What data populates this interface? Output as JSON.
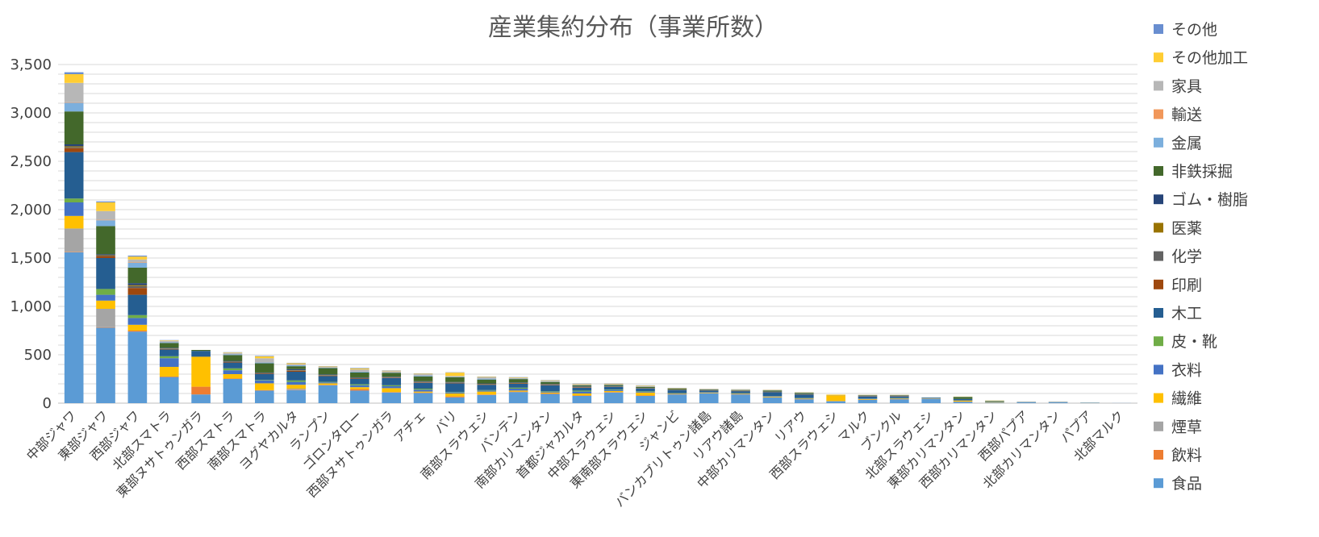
{
  "chart_data": {
    "type": "bar",
    "stacked": true,
    "title": "産業集約分布（事業所数）",
    "xlabel": "",
    "ylabel": "",
    "ylim": [
      0,
      3500
    ],
    "yticks": [
      0,
      500,
      1000,
      1500,
      2000,
      2500,
      3000,
      3500
    ],
    "ytick_labels": [
      "0",
      "500",
      "1,000",
      "1,500",
      "2,000",
      "2,500",
      "3,000",
      "3,500"
    ],
    "grid": true,
    "legend_position": "right",
    "categories": [
      "中部ジャワ",
      "東部ジャワ",
      "西部ジャワ",
      "北部スマトラ",
      "東部ヌサトゥンガラ",
      "西部スマトラ",
      "南部スマトラ",
      "ヨグヤカルタ",
      "ランプン",
      "ゴロンタロー",
      "西部ヌサトゥンガラ",
      "アチェ",
      "バリ",
      "南部スラウェシ",
      "バンテン",
      "南部カリマンタン",
      "首都ジャカルタ",
      "中部スラウェシ",
      "東南部スラウェシ",
      "ジャンビ",
      "バンカブリトゥン諸島",
      "リアウ諸島",
      "中部カリマンタン",
      "リアウ",
      "西部スラウェシ",
      "マルク",
      "ブンクル",
      "北部スラウェシ",
      "東部カリマンタン",
      "西部カリマンタン",
      "西部パプア",
      "北部カリマンタン",
      "パプア",
      "北部マルク"
    ],
    "series": [
      {
        "name": "食品",
        "color": "#5b9bd5",
        "values": [
          1560,
          780,
          740,
          270,
          90,
          250,
          130,
          135,
          185,
          130,
          110,
          105,
          60,
          85,
          115,
          95,
          75,
          110,
          75,
          90,
          100,
          90,
          60,
          40,
          20,
          35,
          40,
          45,
          15,
          6,
          8,
          8,
          2,
          1
        ]
      },
      {
        "name": "飲料",
        "color": "#ed7d31",
        "values": [
          5,
          5,
          10,
          5,
          80,
          5,
          5,
          5,
          5,
          15,
          5,
          5,
          10,
          5,
          5,
          5,
          5,
          5,
          5,
          2,
          2,
          2,
          2,
          2,
          2,
          2,
          2,
          2,
          2,
          1,
          1,
          1,
          0,
          0
        ]
      },
      {
        "name": "煙草",
        "color": "#a5a5a5",
        "values": [
          240,
          190,
          0,
          0,
          0,
          0,
          0,
          10,
          0,
          0,
          0,
          0,
          0,
          0,
          0,
          0,
          0,
          0,
          0,
          0,
          0,
          0,
          0,
          0,
          0,
          0,
          0,
          0,
          0,
          0,
          0,
          0,
          0,
          0
        ]
      },
      {
        "name": "繊維",
        "color": "#ffc000",
        "values": [
          130,
          85,
          60,
          100,
          310,
          45,
          70,
          40,
          15,
          20,
          40,
          10,
          30,
          30,
          10,
          10,
          20,
          10,
          30,
          5,
          5,
          5,
          5,
          5,
          60,
          5,
          5,
          2,
          10,
          5,
          1,
          1,
          0,
          0
        ]
      },
      {
        "name": "衣料",
        "color": "#4472c4",
        "values": [
          140,
          60,
          70,
          90,
          0,
          40,
          30,
          30,
          10,
          20,
          20,
          20,
          10,
          10,
          20,
          10,
          20,
          10,
          10,
          5,
          5,
          5,
          5,
          5,
          2,
          5,
          5,
          2,
          2,
          2,
          1,
          1,
          0,
          0
        ]
      },
      {
        "name": "皮・靴",
        "color": "#70ad47",
        "values": [
          40,
          60,
          30,
          20,
          0,
          20,
          5,
          15,
          5,
          10,
          10,
          10,
          5,
          5,
          10,
          5,
          10,
          5,
          5,
          2,
          2,
          2,
          2,
          2,
          0,
          2,
          2,
          0,
          0,
          0,
          0,
          0,
          0,
          0
        ]
      },
      {
        "name": "木工",
        "color": "#255e91",
        "values": [
          480,
          320,
          210,
          70,
          60,
          60,
          60,
          90,
          60,
          55,
          75,
          60,
          90,
          55,
          40,
          60,
          30,
          30,
          25,
          30,
          15,
          20,
          40,
          35,
          0,
          20,
          15,
          5,
          15,
          5,
          2,
          2,
          2,
          0
        ]
      },
      {
        "name": "印刷",
        "color": "#9e480e",
        "values": [
          40,
          20,
          70,
          5,
          0,
          5,
          5,
          10,
          5,
          5,
          5,
          5,
          5,
          5,
          5,
          5,
          5,
          2,
          2,
          2,
          2,
          2,
          2,
          2,
          0,
          2,
          2,
          0,
          0,
          0,
          0,
          0,
          0,
          0
        ]
      },
      {
        "name": "化学",
        "color": "#636363",
        "values": [
          10,
          5,
          20,
          5,
          0,
          5,
          5,
          5,
          5,
          5,
          2,
          5,
          2,
          2,
          2,
          2,
          2,
          2,
          2,
          2,
          2,
          2,
          2,
          2,
          0,
          1,
          1,
          0,
          0,
          0,
          0,
          0,
          0,
          0
        ]
      },
      {
        "name": "医薬",
        "color": "#997300",
        "values": [
          10,
          5,
          10,
          2,
          0,
          2,
          2,
          2,
          2,
          2,
          2,
          2,
          2,
          2,
          2,
          2,
          2,
          2,
          2,
          1,
          1,
          1,
          1,
          1,
          0,
          1,
          1,
          0,
          0,
          0,
          0,
          0,
          0,
          0
        ]
      },
      {
        "name": "ゴム・樹脂",
        "color": "#264478",
        "values": [
          20,
          10,
          20,
          5,
          0,
          5,
          5,
          10,
          5,
          5,
          5,
          5,
          5,
          5,
          5,
          5,
          5,
          2,
          2,
          2,
          2,
          2,
          2,
          2,
          0,
          2,
          2,
          0,
          0,
          0,
          0,
          0,
          0,
          0
        ]
      },
      {
        "name": "非鉄採掘",
        "color": "#43682b",
        "values": [
          340,
          290,
          160,
          50,
          10,
          60,
          95,
          30,
          65,
          50,
          40,
          50,
          50,
          40,
          35,
          20,
          10,
          10,
          10,
          10,
          5,
          5,
          10,
          10,
          0,
          5,
          5,
          2,
          20,
          5,
          1,
          1,
          1,
          0
        ]
      },
      {
        "name": "金属",
        "color": "#7cafdd",
        "values": [
          90,
          60,
          50,
          10,
          0,
          10,
          10,
          10,
          5,
          10,
          5,
          10,
          5,
          10,
          5,
          5,
          5,
          5,
          5,
          2,
          2,
          2,
          2,
          2,
          0,
          2,
          2,
          2,
          2,
          1,
          0,
          0,
          0,
          0
        ]
      },
      {
        "name": "輸送",
        "color": "#f1975a",
        "values": [
          5,
          5,
          5,
          2,
          0,
          2,
          2,
          2,
          2,
          2,
          2,
          2,
          2,
          2,
          2,
          2,
          2,
          2,
          2,
          1,
          1,
          1,
          1,
          1,
          0,
          1,
          1,
          0,
          0,
          0,
          0,
          0,
          0,
          0
        ]
      },
      {
        "name": "家具",
        "color": "#b7b7b7",
        "values": [
          200,
          90,
          30,
          10,
          0,
          10,
          40,
          10,
          5,
          20,
          10,
          10,
          5,
          10,
          5,
          5,
          5,
          2,
          2,
          2,
          2,
          2,
          2,
          2,
          0,
          1,
          1,
          0,
          0,
          0,
          0,
          0,
          0,
          0
        ]
      },
      {
        "name": "その他加工",
        "color": "#ffcd33",
        "values": [
          90,
          90,
          30,
          5,
          0,
          5,
          20,
          10,
          5,
          10,
          5,
          5,
          35,
          5,
          5,
          5,
          5,
          5,
          5,
          2,
          2,
          2,
          2,
          2,
          5,
          2,
          2,
          0,
          2,
          2,
          0,
          0,
          0,
          0
        ]
      },
      {
        "name": "その他",
        "color": "#698ed0",
        "values": [
          20,
          10,
          10,
          3,
          0,
          3,
          5,
          3,
          3,
          5,
          3,
          3,
          3,
          3,
          3,
          3,
          3,
          3,
          3,
          1,
          1,
          1,
          1,
          1,
          0,
          1,
          1,
          0,
          0,
          0,
          0,
          0,
          0,
          0
        ]
      }
    ]
  }
}
